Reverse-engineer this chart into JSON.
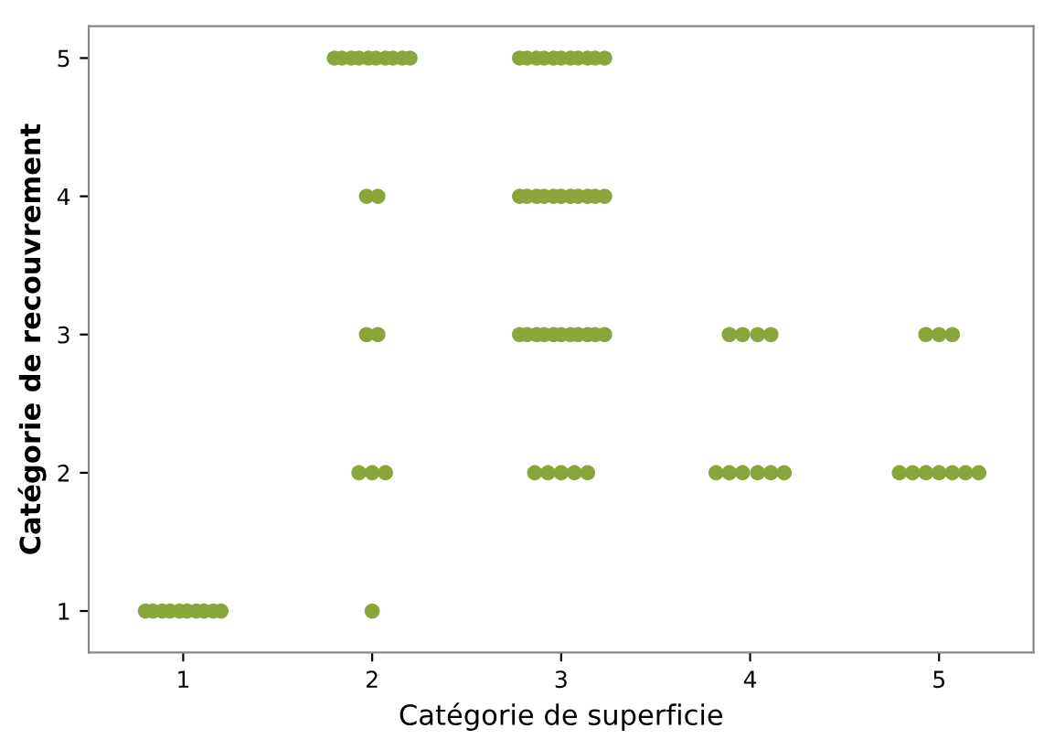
{
  "chart_data": {
    "type": "scatter",
    "xlabel": "Catégorie de superficie",
    "ylabel": "Catégorie de recouvrement",
    "x": [
      0.8,
      0.84,
      0.89,
      0.93,
      0.98,
      1.02,
      1.07,
      1.11,
      1.16,
      1.2,
      2.0,
      1.93,
      2.0,
      2.07,
      1.97,
      2.03,
      1.97,
      2.03,
      1.8,
      1.84,
      1.89,
      1.93,
      1.98,
      2.02,
      2.07,
      2.11,
      2.16,
      2.2,
      2.78,
      2.82,
      2.87,
      2.91,
      2.96,
      3.0,
      3.05,
      3.09,
      3.14,
      3.18,
      3.23,
      2.78,
      2.82,
      2.87,
      2.91,
      2.96,
      3.0,
      3.05,
      3.09,
      3.14,
      3.18,
      3.23,
      2.78,
      2.82,
      2.87,
      2.91,
      2.96,
      3.0,
      3.05,
      3.09,
      3.14,
      3.18,
      3.23,
      2.86,
      2.93,
      3.0,
      3.07,
      3.14,
      3.89,
      3.96,
      4.04,
      4.11,
      3.82,
      3.89,
      3.96,
      4.04,
      4.11,
      4.18,
      4.93,
      5.0,
      5.07,
      4.79,
      4.86,
      4.93,
      5.0,
      5.07,
      5.14,
      5.21
    ],
    "values": [
      1,
      1,
      1,
      1,
      1,
      1,
      1,
      1,
      1,
      1,
      1,
      2,
      2,
      2,
      3,
      3,
      4,
      4,
      5,
      5,
      5,
      5,
      5,
      5,
      5,
      5,
      5,
      5,
      5,
      5,
      5,
      5,
      5,
      5,
      5,
      5,
      5,
      5,
      5,
      4,
      4,
      4,
      4,
      4,
      4,
      4,
      4,
      4,
      4,
      4,
      3,
      3,
      3,
      3,
      3,
      3,
      3,
      3,
      3,
      3,
      3,
      2,
      2,
      2,
      2,
      2,
      3,
      3,
      3,
      3,
      2,
      2,
      2,
      2,
      2,
      2,
      3,
      3,
      3,
      2,
      2,
      2,
      2,
      2,
      2,
      2
    ],
    "color": "#8aa63a",
    "marker": "circle",
    "xlim": [
      0.5,
      5.5
    ],
    "ylim": [
      0.7,
      5.23
    ],
    "xticks": [
      1,
      2,
      3,
      4,
      5
    ],
    "yticks": [
      1,
      2,
      3,
      4,
      5
    ],
    "grid": false,
    "legend": false
  }
}
